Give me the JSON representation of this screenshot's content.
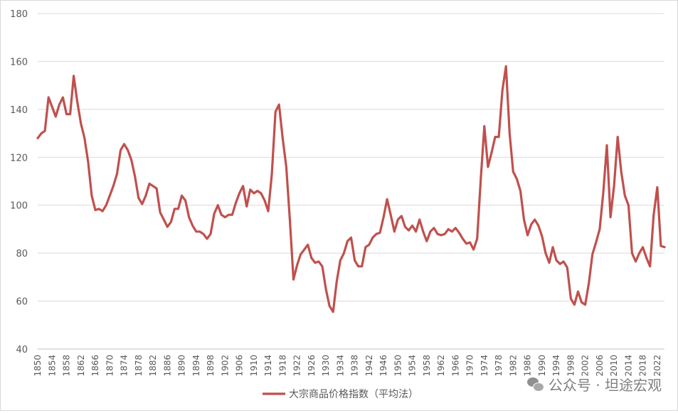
{
  "chart_data": {
    "type": "line",
    "title": "",
    "xlabel": "",
    "ylabel": "",
    "ylim": [
      40,
      180
    ],
    "yticks": [
      40,
      60,
      80,
      100,
      120,
      140,
      160,
      180
    ],
    "xticks": [
      1850,
      1854,
      1858,
      1862,
      1866,
      1870,
      1874,
      1878,
      1882,
      1886,
      1890,
      1894,
      1898,
      1902,
      1906,
      1910,
      1914,
      1918,
      1922,
      1926,
      1930,
      1934,
      1938,
      1942,
      1946,
      1950,
      1954,
      1958,
      1962,
      1966,
      1970,
      1974,
      1978,
      1982,
      1986,
      1990,
      1994,
      1998,
      2002,
      2006,
      2010,
      2014,
      2018,
      2022
    ],
    "xlim": [
      1850,
      2024
    ],
    "grid": "horizontal",
    "legend_position": "bottom",
    "series": [
      {
        "name": "大宗商品价格指数（平均法）",
        "color": "#c0504d",
        "points": [
          [
            1850,
            128
          ],
          [
            1851,
            130
          ],
          [
            1852,
            131
          ],
          [
            1853,
            145
          ],
          [
            1854,
            141
          ],
          [
            1855,
            137
          ],
          [
            1856,
            142
          ],
          [
            1857,
            145
          ],
          [
            1858,
            138
          ],
          [
            1859,
            138
          ],
          [
            1860,
            154
          ],
          [
            1861,
            143
          ],
          [
            1862,
            134
          ],
          [
            1863,
            128
          ],
          [
            1864,
            118
          ],
          [
            1865,
            104
          ],
          [
            1866,
            98
          ],
          [
            1867,
            98.5
          ],
          [
            1868,
            97.5
          ],
          [
            1869,
            100
          ],
          [
            1870,
            104
          ],
          [
            1871,
            108
          ],
          [
            1872,
            113
          ],
          [
            1873,
            123
          ],
          [
            1874,
            125.5
          ],
          [
            1875,
            123
          ],
          [
            1876,
            119
          ],
          [
            1877,
            112
          ],
          [
            1878,
            103
          ],
          [
            1879,
            100.5
          ],
          [
            1880,
            104
          ],
          [
            1881,
            109
          ],
          [
            1882,
            108
          ],
          [
            1883,
            107
          ],
          [
            1884,
            97
          ],
          [
            1885,
            94
          ],
          [
            1886,
            91
          ],
          [
            1887,
            93
          ],
          [
            1888,
            98.5
          ],
          [
            1889,
            98.5
          ],
          [
            1890,
            104
          ],
          [
            1891,
            102
          ],
          [
            1892,
            95
          ],
          [
            1893,
            91.5
          ],
          [
            1894,
            89
          ],
          [
            1895,
            89
          ],
          [
            1896,
            88
          ],
          [
            1897,
            86
          ],
          [
            1898,
            88
          ],
          [
            1899,
            96.5
          ],
          [
            1900,
            100
          ],
          [
            1901,
            96
          ],
          [
            1902,
            95
          ],
          [
            1903,
            96
          ],
          [
            1904,
            96
          ],
          [
            1905,
            101
          ],
          [
            1906,
            105
          ],
          [
            1907,
            108
          ],
          [
            1908,
            99.5
          ],
          [
            1909,
            106.5
          ],
          [
            1910,
            105
          ],
          [
            1911,
            106
          ],
          [
            1912,
            105
          ],
          [
            1913,
            102
          ],
          [
            1914,
            97.5
          ],
          [
            1915,
            113
          ],
          [
            1916,
            139
          ],
          [
            1917,
            142
          ],
          [
            1918,
            128
          ],
          [
            1919,
            116
          ],
          [
            1920,
            94
          ],
          [
            1921,
            69
          ],
          [
            1922,
            75
          ],
          [
            1923,
            79.5
          ],
          [
            1924,
            81.5
          ],
          [
            1925,
            83.5
          ],
          [
            1926,
            78
          ],
          [
            1927,
            76
          ],
          [
            1928,
            76.5
          ],
          [
            1929,
            74.5
          ],
          [
            1930,
            65
          ],
          [
            1931,
            58
          ],
          [
            1932,
            55.5
          ],
          [
            1933,
            68
          ],
          [
            1934,
            77
          ],
          [
            1935,
            80
          ],
          [
            1936,
            85
          ],
          [
            1937,
            86.5
          ],
          [
            1938,
            77
          ],
          [
            1939,
            74.5
          ],
          [
            1940,
            74.5
          ],
          [
            1941,
            82.5
          ],
          [
            1942,
            83.5
          ],
          [
            1943,
            86.5
          ],
          [
            1944,
            88
          ],
          [
            1945,
            88.5
          ],
          [
            1946,
            95
          ],
          [
            1947,
            102.5
          ],
          [
            1948,
            96
          ],
          [
            1949,
            89
          ],
          [
            1950,
            94
          ],
          [
            1951,
            95.5
          ],
          [
            1952,
            91
          ],
          [
            1953,
            89.5
          ],
          [
            1954,
            91.5
          ],
          [
            1955,
            89
          ],
          [
            1956,
            94
          ],
          [
            1957,
            89
          ],
          [
            1958,
            85
          ],
          [
            1959,
            89
          ],
          [
            1960,
            90.5
          ],
          [
            1961,
            88
          ],
          [
            1962,
            87.5
          ],
          [
            1963,
            88
          ],
          [
            1964,
            90
          ],
          [
            1965,
            89
          ],
          [
            1966,
            90.5
          ],
          [
            1967,
            88.5
          ],
          [
            1968,
            86
          ],
          [
            1969,
            84
          ],
          [
            1970,
            84.5
          ],
          [
            1971,
            81.5
          ],
          [
            1972,
            86
          ],
          [
            1973,
            111
          ],
          [
            1974,
            133
          ],
          [
            1975,
            116
          ],
          [
            1976,
            122
          ],
          [
            1977,
            128.5
          ],
          [
            1978,
            128.5
          ],
          [
            1979,
            148
          ],
          [
            1980,
            158
          ],
          [
            1981,
            130
          ],
          [
            1982,
            114
          ],
          [
            1983,
            111
          ],
          [
            1984,
            106
          ],
          [
            1985,
            94
          ],
          [
            1986,
            87.5
          ],
          [
            1987,
            92
          ],
          [
            1988,
            94
          ],
          [
            1989,
            91.5
          ],
          [
            1990,
            87
          ],
          [
            1991,
            80
          ],
          [
            1992,
            76
          ],
          [
            1993,
            82.5
          ],
          [
            1994,
            77
          ],
          [
            1995,
            75.5
          ],
          [
            1996,
            76.5
          ],
          [
            1997,
            74
          ],
          [
            1998,
            61
          ],
          [
            1999,
            58.5
          ],
          [
            2000,
            64
          ],
          [
            2001,
            59.5
          ],
          [
            2002,
            58.5
          ],
          [
            2003,
            67.5
          ],
          [
            2004,
            79.5
          ],
          [
            2005,
            84.5
          ],
          [
            2006,
            90
          ],
          [
            2007,
            105
          ],
          [
            2008,
            125
          ],
          [
            2009,
            95
          ],
          [
            2010,
            108
          ],
          [
            2011,
            128.5
          ],
          [
            2012,
            114
          ],
          [
            2013,
            104
          ],
          [
            2014,
            100
          ],
          [
            2015,
            80
          ],
          [
            2016,
            76.5
          ],
          [
            2017,
            80
          ],
          [
            2018,
            82.5
          ],
          [
            2019,
            78
          ],
          [
            2020,
            74.5
          ],
          [
            2021,
            96
          ],
          [
            2022,
            107.5
          ],
          [
            2023,
            83
          ],
          [
            2024,
            82.5
          ]
        ]
      }
    ]
  },
  "watermark": {
    "icon": "wechat-icon",
    "text": "公众号 · 坦途宏观"
  }
}
